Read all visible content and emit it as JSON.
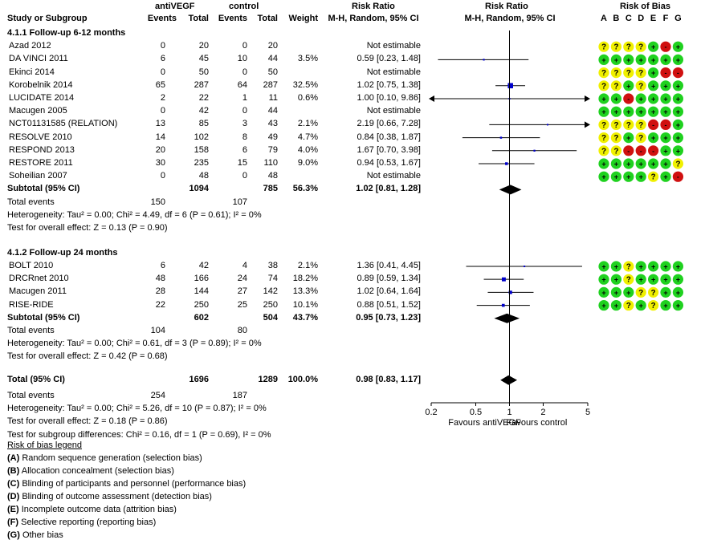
{
  "header": {
    "group1": "antiVEGF",
    "group2": "control",
    "risk_ratio": "Risk Ratio",
    "risk_ratio_method": "M-H, Random, 95% CI",
    "risk_ratio_plot": "Risk Ratio",
    "risk_ratio_plot_method": "M-H, Random, 95% CI",
    "risk_of_bias": "Risk of Bias",
    "study": "Study or Subgroup",
    "events": "Events",
    "total": "Total",
    "weight": "Weight",
    "bias_letters": [
      "A",
      "B",
      "C",
      "D",
      "E",
      "F",
      "G"
    ]
  },
  "colors": {
    "low_risk": "#1fd11f",
    "unclear_risk": "#f0f000",
    "high_risk": "#d01010",
    "square": "#0000cc",
    "diamond": "#000000"
  },
  "chart_data": {
    "type": "scatter",
    "scale": "log",
    "xlim": [
      0.2,
      5
    ],
    "null_value": 1,
    "ticks": [
      "0.2",
      "0.5",
      "1",
      "2",
      "5"
    ],
    "tick_values": [
      0.2,
      0.5,
      1,
      2,
      5
    ],
    "xlabel_left": "Favours antiVEGF",
    "xlabel_right": "Favours control",
    "subgroups": [
      {
        "title": "4.1.1 Follow-up 6-12 months",
        "studies": [
          {
            "name": "Azad 2012",
            "e1": "0",
            "n1": "20",
            "e2": "0",
            "n2": "20",
            "weight": "",
            "ci_text": "Not estimable",
            "rr": null,
            "lo": null,
            "hi": null,
            "bias": [
              "?",
              "?",
              "?",
              "?",
              "+",
              "-",
              "+"
            ]
          },
          {
            "name": "DA VINCI 2011",
            "e1": "6",
            "n1": "45",
            "e2": "10",
            "n2": "44",
            "weight": "3.5%",
            "ci_text": "0.59 [0.23, 1.48]",
            "rr": 0.59,
            "lo": 0.23,
            "hi": 1.48,
            "bias": [
              "+",
              "+",
              "+",
              "+",
              "+",
              "+",
              "+"
            ]
          },
          {
            "name": "Ekinci 2014",
            "e1": "0",
            "n1": "50",
            "e2": "0",
            "n2": "50",
            "weight": "",
            "ci_text": "Not estimable",
            "rr": null,
            "lo": null,
            "hi": null,
            "bias": [
              "?",
              "?",
              "?",
              "?",
              "+",
              "-",
              "-"
            ]
          },
          {
            "name": "Korobelnik 2014",
            "e1": "65",
            "n1": "287",
            "e2": "64",
            "n2": "287",
            "weight": "32.5%",
            "ci_text": "1.02 [0.75, 1.38]",
            "rr": 1.02,
            "lo": 0.75,
            "hi": 1.38,
            "bias": [
              "?",
              "?",
              "+",
              "?",
              "+",
              "+",
              "+"
            ]
          },
          {
            "name": "LUCIDATE 2014",
            "e1": "2",
            "n1": "22",
            "e2": "1",
            "n2": "11",
            "weight": "0.6%",
            "ci_text": "1.00 [0.10, 9.86]",
            "rr": 1.0,
            "lo": 0.1,
            "hi": 9.86,
            "bias": [
              "+",
              "+",
              "-",
              "+",
              "+",
              "+",
              "+"
            ]
          },
          {
            "name": "Macugen 2005",
            "e1": "0",
            "n1": "42",
            "e2": "0",
            "n2": "44",
            "weight": "",
            "ci_text": "Not estimable",
            "rr": null,
            "lo": null,
            "hi": null,
            "bias": [
              "+",
              "+",
              "+",
              "+",
              "+",
              "+",
              "+"
            ]
          },
          {
            "name": "NCT01131585  (RELATION)",
            "e1": "13",
            "n1": "85",
            "e2": "3",
            "n2": "43",
            "weight": "2.1%",
            "ci_text": "2.19 [0.66, 7.28]",
            "rr": 2.19,
            "lo": 0.66,
            "hi": 7.28,
            "bias": [
              "?",
              "?",
              "?",
              "?",
              "-",
              "-",
              "+"
            ]
          },
          {
            "name": "RESOLVE 2010",
            "e1": "14",
            "n1": "102",
            "e2": "8",
            "n2": "49",
            "weight": "4.7%",
            "ci_text": "0.84 [0.38, 1.87]",
            "rr": 0.84,
            "lo": 0.38,
            "hi": 1.87,
            "bias": [
              "?",
              "?",
              "+",
              "?",
              "+",
              "+",
              "+"
            ]
          },
          {
            "name": "RESPOND 2013",
            "e1": "20",
            "n1": "158",
            "e2": "6",
            "n2": "79",
            "weight": "4.0%",
            "ci_text": "1.67 [0.70, 3.98]",
            "rr": 1.67,
            "lo": 0.7,
            "hi": 3.98,
            "bias": [
              "?",
              "?",
              "-",
              "-",
              "-",
              "+",
              "+"
            ]
          },
          {
            "name": "RESTORE 2011",
            "e1": "30",
            "n1": "235",
            "e2": "15",
            "n2": "110",
            "weight": "9.0%",
            "ci_text": "0.94 [0.53, 1.67]",
            "rr": 0.94,
            "lo": 0.53,
            "hi": 1.67,
            "bias": [
              "+",
              "+",
              "+",
              "+",
              "+",
              "+",
              "?"
            ]
          },
          {
            "name": "Soheilian 2007",
            "e1": "0",
            "n1": "48",
            "e2": "0",
            "n2": "48",
            "weight": "",
            "ci_text": "Not estimable",
            "rr": null,
            "lo": null,
            "hi": null,
            "bias": [
              "+",
              "+",
              "+",
              "+",
              "?",
              "+",
              "-"
            ]
          }
        ],
        "subtotal": {
          "label": "Subtotal (95% CI)",
          "n1": "1094",
          "n2": "785",
          "weight": "56.3%",
          "ci_text": "1.02 [0.81, 1.28]",
          "rr": 1.02,
          "lo": 0.81,
          "hi": 1.28
        },
        "total_events": {
          "label": "Total events",
          "e1": "150",
          "e2": "107"
        },
        "heterogeneity": "Heterogeneity: Tau² = 0.00; Chi² = 4.49, df = 6 (P = 0.61); I² = 0%",
        "overall_effect": "Test for overall effect: Z = 0.13 (P = 0.90)"
      },
      {
        "title": "4.1.2 Follow-up 24 months",
        "studies": [
          {
            "name": "BOLT 2010",
            "e1": "6",
            "n1": "42",
            "e2": "4",
            "n2": "38",
            "weight": "2.1%",
            "ci_text": "1.36 [0.41, 4.45]",
            "rr": 1.36,
            "lo": 0.41,
            "hi": 4.45,
            "bias": [
              "+",
              "+",
              "?",
              "+",
              "+",
              "+",
              "+"
            ]
          },
          {
            "name": "DRCRnet  2010",
            "e1": "48",
            "n1": "166",
            "e2": "24",
            "n2": "74",
            "weight": "18.2%",
            "ci_text": "0.89 [0.59, 1.34]",
            "rr": 0.89,
            "lo": 0.59,
            "hi": 1.34,
            "bias": [
              "+",
              "+",
              "?",
              "+",
              "+",
              "+",
              "+"
            ]
          },
          {
            "name": "Macugen 2011",
            "e1": "28",
            "n1": "144",
            "e2": "27",
            "n2": "142",
            "weight": "13.3%",
            "ci_text": "1.02 [0.64, 1.64]",
            "rr": 1.02,
            "lo": 0.64,
            "hi": 1.64,
            "bias": [
              "+",
              "+",
              "+",
              "?",
              "?",
              "+",
              "+"
            ]
          },
          {
            "name": "RISE-RIDE",
            "e1": "22",
            "n1": "250",
            "e2": "25",
            "n2": "250",
            "weight": "10.1%",
            "ci_text": "0.88 [0.51, 1.52]",
            "rr": 0.88,
            "lo": 0.51,
            "hi": 1.52,
            "bias": [
              "+",
              "+",
              "?",
              "+",
              "?",
              "+",
              "+"
            ]
          }
        ],
        "subtotal": {
          "label": "Subtotal (95% CI)",
          "n1": "602",
          "n2": "504",
          "weight": "43.7%",
          "ci_text": "0.95 [0.73, 1.23]",
          "rr": 0.95,
          "lo": 0.73,
          "hi": 1.23
        },
        "total_events": {
          "label": "Total events",
          "e1": "104",
          "e2": "80"
        },
        "heterogeneity": "Heterogeneity: Tau² = 0.00; Chi² = 0.61, df = 3 (P = 0.89); I² = 0%",
        "overall_effect": "Test for overall effect: Z = 0.42 (P = 0.68)"
      }
    ],
    "total": {
      "label": "Total (95% CI)",
      "n1": "1696",
      "n2": "1289",
      "weight": "100.0%",
      "ci_text": "0.98 [0.83, 1.17]",
      "rr": 0.98,
      "lo": 0.83,
      "hi": 1.17
    },
    "total_events": {
      "label": "Total events",
      "e1": "254",
      "e2": "187"
    },
    "heterogeneity": "Heterogeneity: Tau² = 0.00; Chi² = 5.26, df = 10 (P = 0.87); I² = 0%",
    "overall_effect": "Test for overall effect: Z = 0.18 (P = 0.86)",
    "subgroup_differences": "Test for subgroup differences: Chi² = 0.16, df = 1 (P = 0.69), I² = 0%"
  },
  "legend": {
    "title": "Risk of bias legend",
    "items": [
      {
        "letter": "(A)",
        "text": " Random sequence generation (selection bias)"
      },
      {
        "letter": "(B)",
        "text": " Allocation concealment (selection bias)"
      },
      {
        "letter": "(C)",
        "text": " Blinding of participants and personnel (performance bias)"
      },
      {
        "letter": "(D)",
        "text": " Blinding of outcome assessment (detection bias)"
      },
      {
        "letter": "(E)",
        "text": " Incomplete outcome data (attrition bias)"
      },
      {
        "letter": "(F)",
        "text": " Selective reporting (reporting bias)"
      },
      {
        "letter": "(G)",
        "text": " Other bias"
      }
    ]
  }
}
